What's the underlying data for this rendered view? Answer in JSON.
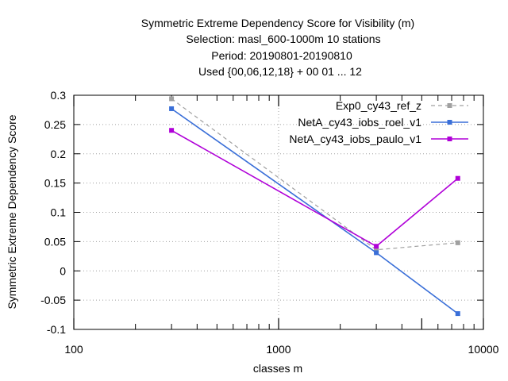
{
  "chart_data": {
    "type": "line",
    "title_lines": [
      "Symmetric Extreme Dependency Score  for Visibility (m)",
      "Selection: masl_600-1000m     10 stations",
      "Period: 20190801-20190810",
      "Used {00,06,12,18} + 00 01 ... 12"
    ],
    "xlabel": "classes m",
    "ylabel": "Symmetric Extreme Dependency Score",
    "x_scale": "log",
    "xlim": [
      100,
      10000
    ],
    "ylim": [
      -0.1,
      0.3
    ],
    "x_ticks": [
      {
        "value": 100,
        "label": "100"
      },
      {
        "value": 1000,
        "label": "1000"
      },
      {
        "value": 10000,
        "label": "10000"
      }
    ],
    "y_ticks": [
      {
        "value": -0.1,
        "label": "-0.1"
      },
      {
        "value": -0.05,
        "label": "-0.05"
      },
      {
        "value": 0,
        "label": "0"
      },
      {
        "value": 0.05,
        "label": "0.05"
      },
      {
        "value": 0.1,
        "label": "0.1"
      },
      {
        "value": 0.15,
        "label": "0.15"
      },
      {
        "value": 0.2,
        "label": "0.2"
      },
      {
        "value": 0.25,
        "label": "0.25"
      },
      {
        "value": 0.3,
        "label": "0.3"
      }
    ],
    "extra_x_ticks": [
      5000
    ],
    "grid": true,
    "legend_position": "top-right",
    "series": [
      {
        "name": "Exp0_cy43_ref_z",
        "color": "#a0a0a0",
        "dash": true,
        "x": [
          300,
          3000,
          7500
        ],
        "y": [
          0.294,
          0.036,
          0.048
        ]
      },
      {
        "name": "NetA_cy43_iobs_roel_v1",
        "color": "#3a6fd8",
        "dash": false,
        "x": [
          300,
          3000,
          7500
        ],
        "y": [
          0.277,
          0.031,
          -0.073
        ]
      },
      {
        "name": "NetA_cy43_iobs_paulo_v1",
        "color": "#b000d8",
        "dash": false,
        "x": [
          300,
          3000,
          7500
        ],
        "y": [
          0.24,
          0.042,
          0.158
        ]
      }
    ]
  }
}
